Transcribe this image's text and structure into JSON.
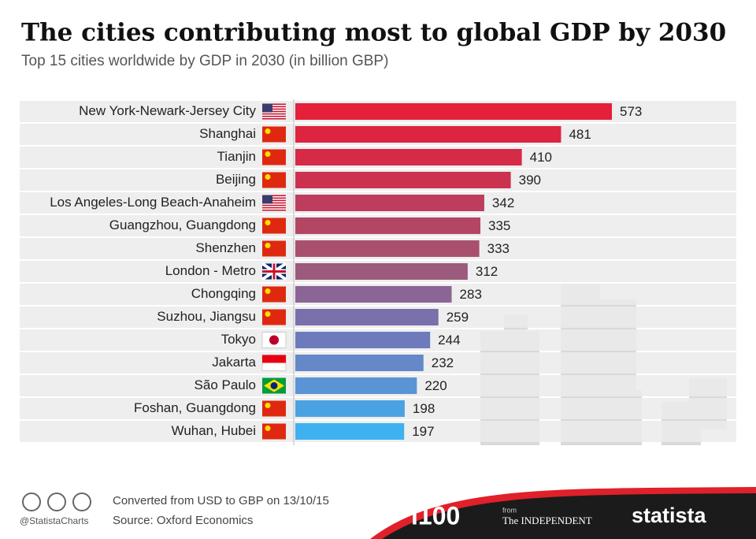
{
  "chart_data": {
    "type": "hbar",
    "title": "The cities contributing most to global GDP by 2030",
    "subtitle": "Top 15 cities worldwide by GDP in 2030 (in billion GBP)",
    "categories": [
      "New York-Newark-Jersey City",
      "Shanghai",
      "Tianjin",
      "Beijing",
      "Los Angeles-Long Beach-Anaheim",
      "Guangzhou, Guangdong",
      "Shenzhen",
      "London - Metro",
      "Chongqing",
      "Suzhou, Jiangsu",
      "Tokyo",
      "Jakarta",
      "São Paulo",
      "Foshan, Guangdong",
      "Wuhan, Hubei"
    ],
    "values": [
      573,
      481,
      410,
      390,
      342,
      335,
      333,
      312,
      283,
      259,
      244,
      232,
      220,
      198,
      197
    ],
    "colors": [
      "#e4203a",
      "#dd2440",
      "#d52b48",
      "#cc3250",
      "#be3d5c",
      "#b34663",
      "#a9506e",
      "#9c5a7c",
      "#8b6595",
      "#7a70ab",
      "#6d7bbd",
      "#6488c8",
      "#5a94d4",
      "#4ba2e2",
      "#3fb0f0"
    ]
  },
  "footer": {
    "note": "Converted from USD to GBP on 13/10/15",
    "source": "Source: Oxford Economics",
    "handle": "@StatistaCharts",
    "i100": "i100",
    "from": "from",
    "independent": "The INDEPENDENT",
    "brand": "statista"
  }
}
